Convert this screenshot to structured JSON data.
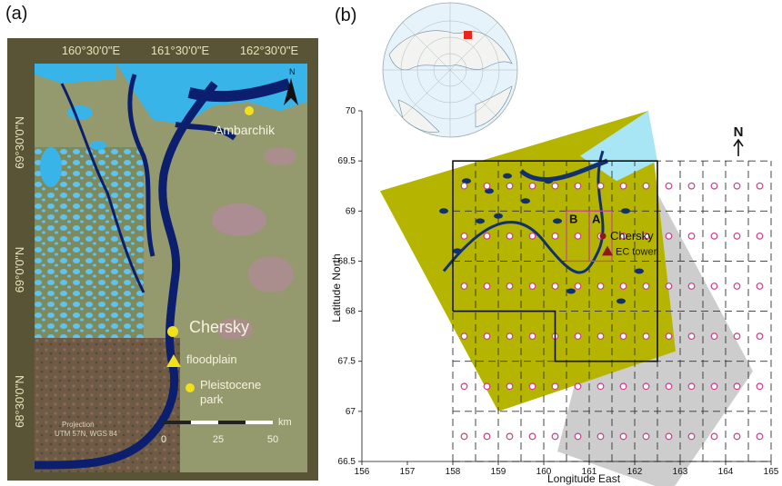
{
  "panel_a": {
    "label": "(a)",
    "top_coords": [
      "160°30'0\"E",
      "161°30'0\"E",
      "162°30'0\"E"
    ],
    "left_coords": [
      "69°30'0\"N",
      "69°0'0\"N",
      "68°30'0\"N"
    ],
    "north_label": "N",
    "places": {
      "ambarchik": "Ambarchik",
      "chersky": "Chersky",
      "floodplain": "floodplain",
      "pleistocene_line1": "Pleistocene",
      "pleistocene_line2": "park"
    },
    "scale": {
      "labels": [
        "0",
        "25",
        "50"
      ],
      "unit": "km"
    },
    "projection_line1": "Projection",
    "projection_line2": "UTM 57N, WGS 84",
    "colors": {
      "marker": "#f2e01a",
      "river": "#0b1f6e",
      "lake": "#39a8e6",
      "border": "#5a5437"
    }
  },
  "panel_b": {
    "label": "(b)",
    "xlabel": "Longitude East",
    "ylabel": "Latitude North",
    "north_label": "N",
    "labels": {
      "chersky": "Chersky",
      "ec_tower": "EC tower",
      "box_a": "A",
      "box_b": "B"
    },
    "colors": {
      "land": "#b5b400",
      "water": "#10306e",
      "sea": "#a9e6f5",
      "gray": "#cdcdcd",
      "grid_point": "#cc3d8a",
      "tower": "#8b1a1a",
      "box": "#c0508a"
    }
  },
  "chart_data": {
    "type": "scatter",
    "xlabel": "Longitude East",
    "ylabel": "Latitude North",
    "xlim": [
      156,
      165
    ],
    "ylim": [
      66.5,
      70
    ],
    "xticks": [
      156,
      157,
      158,
      159,
      160,
      161,
      162,
      163,
      164,
      165
    ],
    "xtick_labels": [
      "156",
      "157",
      "158",
      "159",
      "160",
      "161",
      "162",
      "163",
      "164",
      "165"
    ],
    "yticks": [
      66.5,
      67,
      67.5,
      68,
      68.5,
      69,
      69.5,
      70
    ],
    "ytick_labels": [
      "66.5",
      "67",
      "67.5",
      "68",
      "68.5",
      "69",
      "69.5",
      "70"
    ],
    "grid_cell_lines_x": [
      158,
      158.5,
      159,
      159.5,
      160,
      160.5,
      161,
      161.5,
      162,
      162.5,
      163,
      163.5,
      164,
      164.5,
      165
    ],
    "grid_cell_lines_y": [
      66.5,
      67,
      67.5,
      68,
      68.5,
      69,
      69.5
    ],
    "grid_points_lon": [
      158.25,
      158.75,
      159.25,
      159.75,
      160.25,
      160.75,
      161.25,
      161.75,
      162.25,
      162.75,
      163.25,
      163.75,
      164.25,
      164.75
    ],
    "grid_points_lat": [
      66.75,
      67.25,
      67.75,
      68.25,
      68.75,
      69.25
    ],
    "domain_outline": [
      [
        158,
        68
      ],
      [
        158,
        69.5
      ],
      [
        162.5,
        69.5
      ],
      [
        162.5,
        67.5
      ],
      [
        160.25,
        67.5
      ],
      [
        160.25,
        68
      ],
      [
        158,
        68
      ]
    ],
    "box_a": [
      [
        161,
        68.5
      ],
      [
        161.5,
        69
      ]
    ],
    "box_b": [
      [
        160.5,
        68.5
      ],
      [
        161,
        69
      ]
    ],
    "chersky": [
      161.3,
      68.75
    ],
    "ec_tower": [
      161.4,
      68.6
    ]
  }
}
